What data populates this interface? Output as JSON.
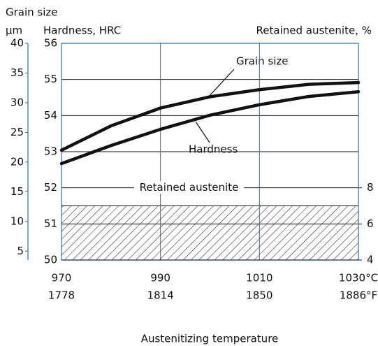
{
  "chart_data": {
    "type": "line",
    "xlabel": "Austenitizing temperature",
    "ylabel": "Hardness, HRC",
    "y2label": "Retained austenite, %",
    "y3label": "Grain size",
    "y3unit": "µm",
    "x": [
      970,
      980,
      990,
      1000,
      1010,
      1020,
      1030
    ],
    "xlim": [
      970,
      1030
    ],
    "xticks": [
      970,
      990,
      1010,
      {
        "value": 1030,
        "label": "1030°C"
      }
    ],
    "x2lim": [
      1778,
      1886
    ],
    "x2ticks": [
      1778,
      1814,
      1850,
      {
        "value": 1886,
        "label": "1886°F"
      }
    ],
    "ylim": [
      50,
      56
    ],
    "yticks": [
      50,
      51,
      52,
      53,
      54,
      55,
      56
    ],
    "y2lim": [
      4,
      16
    ],
    "y2ticks": [
      4,
      6,
      8
    ],
    "y3lim": [
      3.5,
      40
    ],
    "y3ticks": [
      5,
      10,
      15,
      20,
      25,
      30,
      35,
      40
    ],
    "grid": true,
    "series": [
      {
        "name": "Grain size",
        "axis": "y3",
        "color": "#111111",
        "values": [
          22,
          26.1,
          29.1,
          31,
          32.2,
          33.1,
          33.4
        ]
      },
      {
        "name": "Hardness",
        "color": "#111111",
        "values": [
          52.67,
          53.17,
          53.62,
          54.01,
          54.3,
          54.53,
          54.66
        ]
      }
    ],
    "band": {
      "name": "Retained austenite",
      "axis": "y2",
      "low": 4,
      "high": 7
    }
  }
}
